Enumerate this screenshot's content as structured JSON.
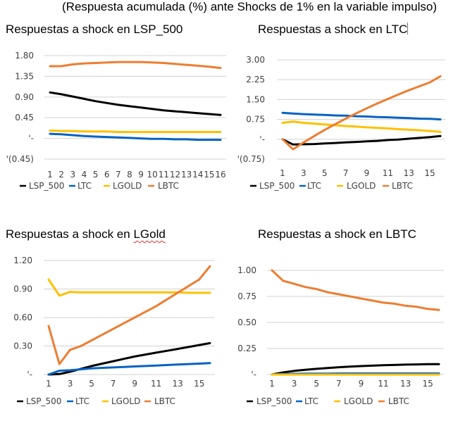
{
  "heading": "(Respuesta acumulada (%) ante Shocks de 1% en la variable impulso)",
  "colors": {
    "LSP_500": "#000000",
    "LTC": "#0563c1",
    "LGOLD": "#ffc000",
    "LBTC": "#ed7d31",
    "grid": "#d9d9d9"
  },
  "chart_data": [
    {
      "type": "line",
      "title": "Respuestas a shock en LSP_500",
      "x": [
        1,
        2,
        3,
        4,
        5,
        6,
        7,
        8,
        9,
        10,
        11,
        12,
        13,
        14,
        15,
        16
      ],
      "xtick_labels": [
        "1",
        "2",
        "3",
        "4",
        "5",
        "6",
        "7",
        "8",
        "9",
        "10",
        "11",
        "12",
        "13",
        "14",
        "15",
        "16"
      ],
      "ylim": [
        -0.45,
        1.8
      ],
      "ytick_values": [
        -0.45,
        0,
        0.45,
        0.9,
        1.35,
        1.8
      ],
      "ytick_labels": [
        "'(0.45)",
        "'-",
        "0.45",
        "0.90",
        "1.35",
        "1.80"
      ],
      "grid": true,
      "legend": "bottom",
      "series": [
        {
          "name": "LSP_500",
          "values": [
            1.0,
            0.96,
            0.91,
            0.86,
            0.81,
            0.77,
            0.73,
            0.7,
            0.67,
            0.64,
            0.61,
            0.59,
            0.57,
            0.55,
            0.53,
            0.51
          ]
        },
        {
          "name": "LTC",
          "values": [
            0.1,
            0.09,
            0.07,
            0.05,
            0.04,
            0.03,
            0.02,
            0.01,
            0.0,
            -0.01,
            -0.01,
            -0.02,
            -0.02,
            -0.03,
            -0.03,
            -0.03
          ]
        },
        {
          "name": "LGOLD",
          "values": [
            0.17,
            0.16,
            0.16,
            0.15,
            0.15,
            0.15,
            0.14,
            0.14,
            0.14,
            0.14,
            0.14,
            0.14,
            0.14,
            0.14,
            0.14,
            0.14
          ]
        },
        {
          "name": "LBTC",
          "values": [
            1.57,
            1.57,
            1.61,
            1.63,
            1.64,
            1.65,
            1.66,
            1.66,
            1.66,
            1.65,
            1.64,
            1.62,
            1.6,
            1.58,
            1.56,
            1.53
          ]
        }
      ]
    },
    {
      "type": "line",
      "title": "Respuestas a shock en LTC",
      "x": [
        1,
        2,
        3,
        4,
        5,
        6,
        7,
        8,
        9,
        10,
        11,
        12,
        13,
        14,
        15,
        16
      ],
      "xtick_labels": [
        "1",
        "3",
        "5",
        "7",
        "9",
        "11",
        "13",
        "15"
      ],
      "xtick_positions": [
        1,
        3,
        5,
        7,
        9,
        11,
        13,
        15
      ],
      "ylim": [
        -0.75,
        3.0
      ],
      "ytick_values": [
        -0.75,
        0,
        0.75,
        1.5,
        2.25,
        3.0
      ],
      "ytick_labels": [
        "'(0.75)",
        "'-",
        "0.75",
        "1.50",
        "2.25",
        "3.00"
      ],
      "grid": true,
      "legend": "bottom",
      "series": [
        {
          "name": "LSP_500",
          "values": [
            0.0,
            -0.2,
            -0.19,
            -0.18,
            -0.16,
            -0.14,
            -0.12,
            -0.1,
            -0.08,
            -0.06,
            -0.03,
            -0.01,
            0.02,
            0.05,
            0.08,
            0.12
          ]
        },
        {
          "name": "LTC",
          "values": [
            1.0,
            0.97,
            0.95,
            0.93,
            0.92,
            0.9,
            0.89,
            0.87,
            0.86,
            0.84,
            0.83,
            0.81,
            0.8,
            0.78,
            0.77,
            0.75
          ]
        },
        {
          "name": "LGOLD",
          "values": [
            0.62,
            0.67,
            0.62,
            0.59,
            0.56,
            0.53,
            0.5,
            0.48,
            0.45,
            0.43,
            0.41,
            0.38,
            0.36,
            0.34,
            0.31,
            0.28
          ]
        },
        {
          "name": "LBTC",
          "values": [
            0.0,
            -0.38,
            -0.12,
            0.12,
            0.35,
            0.57,
            0.78,
            0.98,
            1.17,
            1.35,
            1.52,
            1.69,
            1.85,
            2.0,
            2.15,
            2.38
          ]
        }
      ]
    },
    {
      "type": "line",
      "title_pre": "Respuestas a shock en ",
      "title_marked": "LGold",
      "x": [
        1,
        2,
        3,
        4,
        5,
        6,
        7,
        8,
        9,
        10,
        11,
        12,
        13,
        14,
        15,
        16
      ],
      "xtick_labels": [
        "1",
        "3",
        "5",
        "7",
        "9",
        "11",
        "13",
        "15"
      ],
      "xtick_positions": [
        1,
        3,
        5,
        7,
        9,
        11,
        13,
        15
      ],
      "ylim": [
        0,
        1.2
      ],
      "ytick_values": [
        0,
        0.3,
        0.6,
        0.9,
        1.2
      ],
      "ytick_labels": [
        "'-",
        "0.30",
        "0.60",
        "0.90",
        "1.20"
      ],
      "grid": true,
      "legend": "bottom",
      "series": [
        {
          "name": "LSP_500",
          "values": [
            0.0,
            0.005,
            0.03,
            0.06,
            0.09,
            0.115,
            0.14,
            0.165,
            0.19,
            0.21,
            0.23,
            0.25,
            0.27,
            0.29,
            0.31,
            0.33
          ]
        },
        {
          "name": "LTC",
          "values": [
            0.0,
            0.04,
            0.045,
            0.055,
            0.065,
            0.07,
            0.075,
            0.08,
            0.085,
            0.09,
            0.095,
            0.1,
            0.105,
            0.11,
            0.115,
            0.12
          ]
        },
        {
          "name": "LGOLD",
          "values": [
            1.0,
            0.83,
            0.87,
            0.865,
            0.865,
            0.865,
            0.865,
            0.865,
            0.865,
            0.865,
            0.865,
            0.865,
            0.865,
            0.86,
            0.86,
            0.86
          ]
        },
        {
          "name": "LBTC",
          "values": [
            0.51,
            0.11,
            0.26,
            0.3,
            0.36,
            0.42,
            0.48,
            0.54,
            0.6,
            0.66,
            0.72,
            0.79,
            0.86,
            0.93,
            1.0,
            1.14
          ]
        }
      ]
    },
    {
      "type": "line",
      "title": "Respuestas a shock en LBTC",
      "x": [
        1,
        2,
        3,
        4,
        5,
        6,
        7,
        8,
        9,
        10,
        11,
        12,
        13,
        14,
        15,
        16
      ],
      "xtick_labels": [
        "1",
        "3",
        "5",
        "7",
        "9",
        "11",
        "13",
        "15"
      ],
      "xtick_positions": [
        1,
        3,
        5,
        7,
        9,
        11,
        13,
        15
      ],
      "ylim": [
        0,
        1.0
      ],
      "ytick_values": [
        0,
        0.25,
        0.5,
        0.75,
        1.0
      ],
      "ytick_labels": [
        "'-",
        "0.25",
        "0.50",
        "0.75",
        "1.00"
      ],
      "grid": true,
      "legend": "bottom",
      "series": [
        {
          "name": "LSP_500",
          "values": [
            0.0,
            0.02,
            0.035,
            0.045,
            0.055,
            0.063,
            0.07,
            0.076,
            0.081,
            0.085,
            0.089,
            0.092,
            0.095,
            0.097,
            0.099,
            0.1
          ]
        },
        {
          "name": "LTC",
          "values": [
            0.0,
            0.005,
            0.007,
            0.008,
            0.009,
            0.009,
            0.01,
            0.01,
            0.01,
            0.01,
            0.01,
            0.01,
            0.01,
            0.01,
            0.01,
            0.01
          ]
        },
        {
          "name": "LGOLD",
          "values": [
            0.0,
            0.0,
            0.0,
            0.0,
            0.0,
            0.0,
            0.0,
            0.0,
            0.0,
            0.0,
            0.0,
            0.0,
            0.0,
            0.0,
            0.0,
            0.0
          ]
        },
        {
          "name": "LBTC",
          "values": [
            1.0,
            0.9,
            0.87,
            0.84,
            0.82,
            0.79,
            0.77,
            0.75,
            0.73,
            0.71,
            0.69,
            0.68,
            0.66,
            0.65,
            0.63,
            0.62
          ]
        }
      ]
    }
  ]
}
